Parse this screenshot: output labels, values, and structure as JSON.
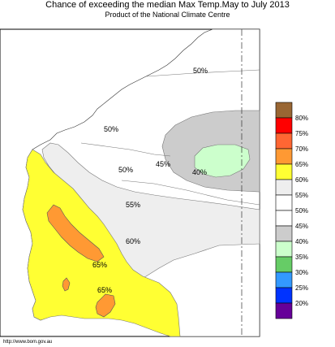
{
  "title": "Chance of exceeding the median Max Temp.May to July 2013",
  "subtitle": "Product of the National Climate Centre",
  "source_url": "http://www.bom.gov.au",
  "contour_labels": [
    "50%",
    "50%",
    "50%",
    "45%",
    "40%",
    "55%",
    "60%",
    "65%",
    "65%"
  ],
  "legend": {
    "items": [
      {
        "label": "80%",
        "color": "#996633"
      },
      {
        "label": "75%",
        "color": "#ff0000"
      },
      {
        "label": "70%",
        "color": "#ff6633"
      },
      {
        "label": "65%",
        "color": "#ff9933"
      },
      {
        "label": "60%",
        "color": "#ffff33"
      },
      {
        "label": "55%",
        "color": "#eeeeee"
      },
      {
        "label": "50%",
        "color": "#ffffff"
      },
      {
        "label": "45%",
        "color": "#ffffff"
      },
      {
        "label": "40%",
        "color": "#cccccc"
      },
      {
        "label": "35%",
        "color": "#ccffcc"
      },
      {
        "label": "30%",
        "color": "#66cc66"
      },
      {
        "label": "25%",
        "color": "#3399ff"
      },
      {
        "label": "20%",
        "color": "#0033ff"
      },
      {
        "label": "",
        "color": "#660099"
      }
    ]
  }
}
